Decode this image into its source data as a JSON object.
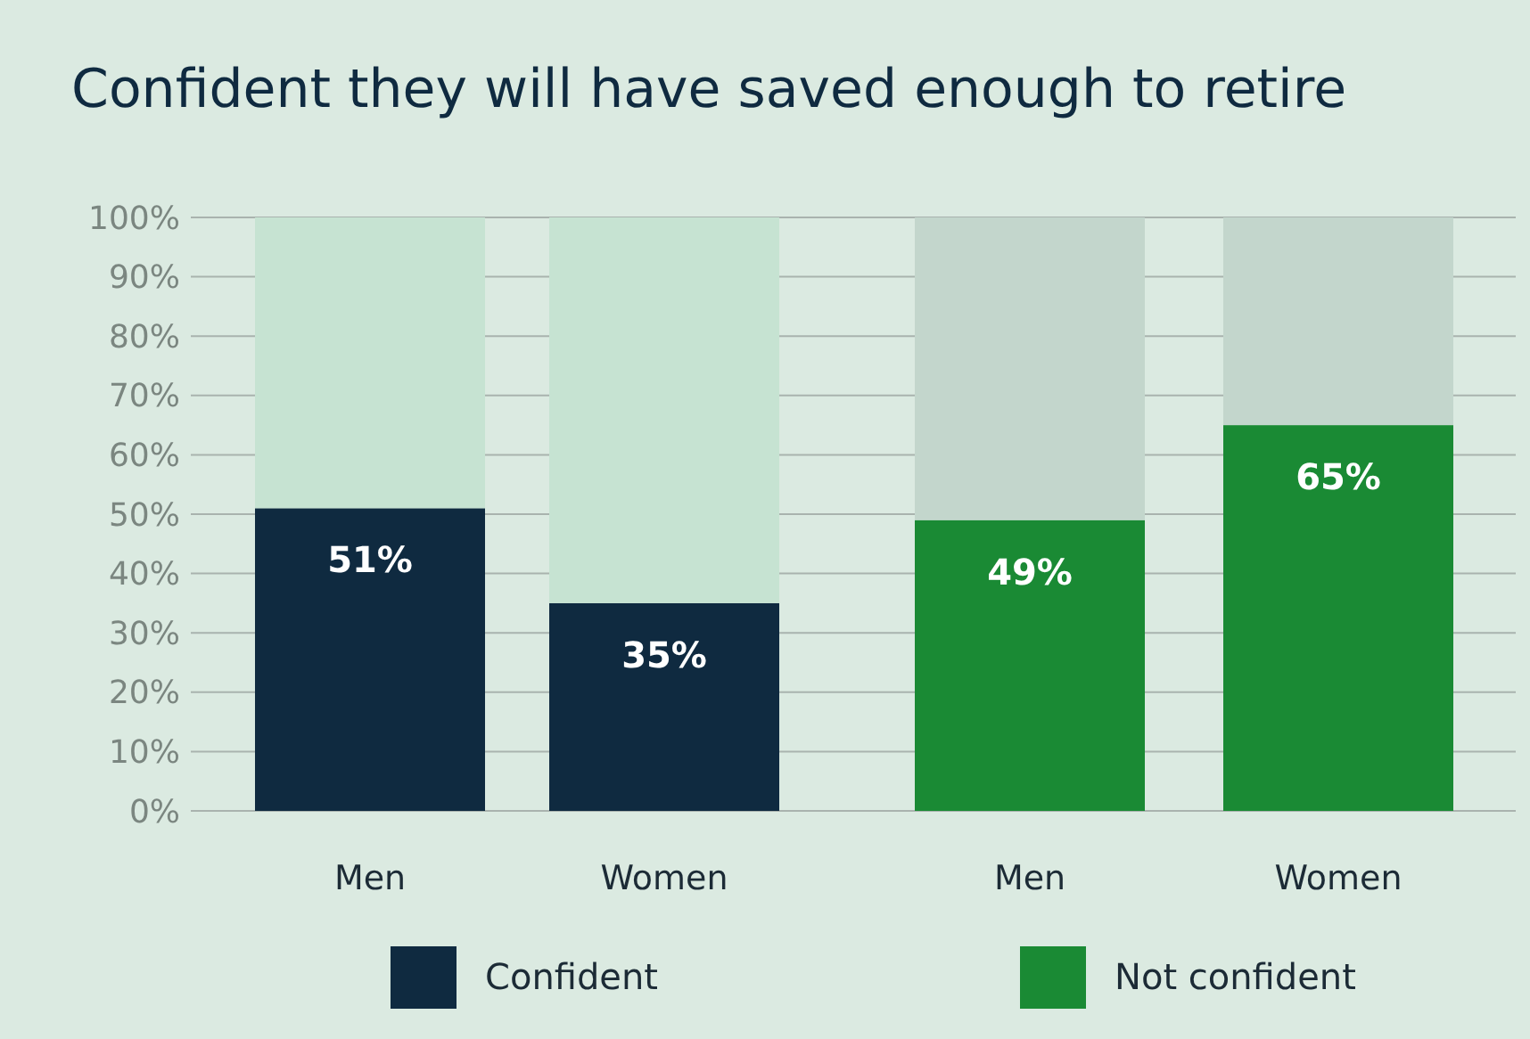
{
  "chart_data": {
    "type": "bar",
    "title": "Confident they will have saved enough to retire",
    "categories": [
      "Men",
      "Women",
      "Men",
      "Women"
    ],
    "stacked": true,
    "ylim": [
      0,
      100
    ],
    "yticks": [
      {
        "value": 0,
        "label": "0%"
      },
      {
        "value": 10,
        "label": "10%"
      },
      {
        "value": 20,
        "label": "20%"
      },
      {
        "value": 30,
        "label": "30%"
      },
      {
        "value": 40,
        "label": "40%"
      },
      {
        "value": 50,
        "label": "50%"
      },
      {
        "value": 60,
        "label": "60%"
      },
      {
        "value": 70,
        "label": "70%"
      },
      {
        "value": 80,
        "label": "80%"
      },
      {
        "value": 90,
        "label": "90%"
      },
      {
        "value": 100,
        "label": "100%"
      }
    ],
    "grid": "y",
    "legend": "bottom",
    "series": [
      {
        "name": "Confident",
        "color": "#0f2a40",
        "values": [
          51,
          35,
          null,
          null
        ],
        "value_labels": [
          "51%",
          "35%",
          null,
          null
        ]
      },
      {
        "name": "Not confident",
        "color": "#1a8a34",
        "values": [
          null,
          null,
          49,
          65
        ],
        "value_labels": [
          null,
          null,
          "49%",
          "65%"
        ]
      },
      {
        "color": "#c6e3d2",
        "values": [
          49,
          65,
          null,
          null
        ]
      },
      {
        "color": "#c3d6cc",
        "values": [
          null,
          null,
          51,
          35
        ]
      }
    ]
  }
}
